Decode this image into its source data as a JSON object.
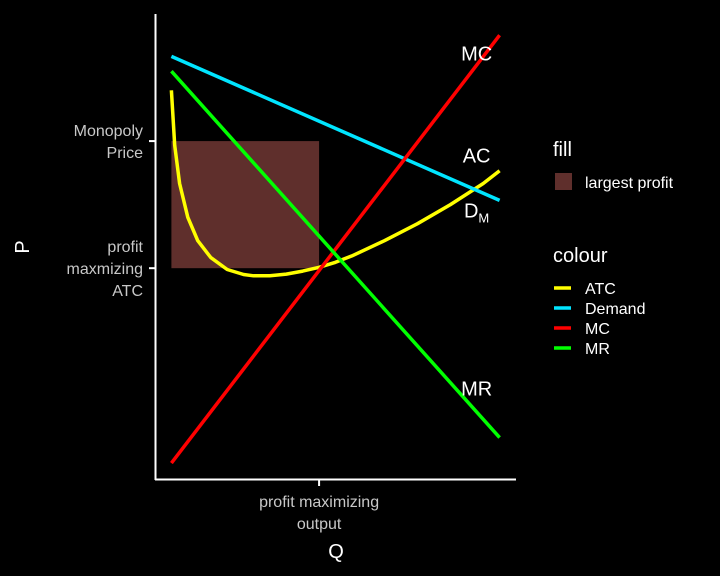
{
  "chart_data": {
    "type": "line",
    "xlabel": "Q",
    "ylabel": "P",
    "x_ticks": [
      {
        "value": 5,
        "lines": [
          "profit maximizing",
          "output"
        ]
      }
    ],
    "y_ticks": [
      {
        "value": 8,
        "lines": [
          "Monopoly",
          "Price"
        ]
      },
      {
        "value": 5,
        "lines": [
          "profit",
          "maxmizing",
          "ATC"
        ]
      }
    ],
    "xlim": [
      0,
      11
    ],
    "ylim": [
      0,
      11
    ],
    "grid": false,
    "series": [
      {
        "name": "ATC",
        "color": "#ffff00",
        "x": [
          0.5,
          0.6,
          0.75,
          1.0,
          1.3,
          1.7,
          2.2,
          2.7,
          3.0,
          3.5,
          4.0,
          4.5,
          5.0,
          5.5,
          6.0,
          7.0,
          8.0,
          9.0,
          10.0,
          10.5
        ],
        "y": [
          9.2,
          7.9,
          7.0,
          6.2,
          5.65,
          5.25,
          4.97,
          4.85,
          4.82,
          4.82,
          4.86,
          4.93,
          5.02,
          5.14,
          5.29,
          5.65,
          6.05,
          6.5,
          7.0,
          7.3
        ]
      },
      {
        "name": "Demand",
        "color": "#00e5ff",
        "x": [
          0.5,
          10.5
        ],
        "y": [
          10.0,
          6.6
        ]
      },
      {
        "name": "MC",
        "color": "#ff0000",
        "x": [
          0.5,
          10.5
        ],
        "y": [
          0.4,
          10.5
        ]
      },
      {
        "name": "MR",
        "color": "#00ff00",
        "x": [
          0.5,
          10.5
        ],
        "y": [
          9.65,
          1.0
        ]
      }
    ],
    "fill": {
      "name": "largest profit",
      "color": "#5f2f2c",
      "x": [
        0.5,
        5.0
      ],
      "y": [
        5.0,
        8.0
      ]
    },
    "annotations": [
      {
        "text": "MC",
        "x": 9.8,
        "y": 9.9
      },
      {
        "text": "AC",
        "x": 9.8,
        "y": 7.5
      },
      {
        "text": "D",
        "sub": "M",
        "x": 9.8,
        "y": 6.2
      },
      {
        "text": "MR",
        "x": 9.8,
        "y": 2.0
      }
    ],
    "legend": {
      "placement": "right",
      "fill_title": "fill",
      "fill_items": [
        "largest profit"
      ],
      "colour_title": "colour",
      "colour_items": [
        "ATC",
        "Demand",
        "MC",
        "MR"
      ]
    }
  }
}
